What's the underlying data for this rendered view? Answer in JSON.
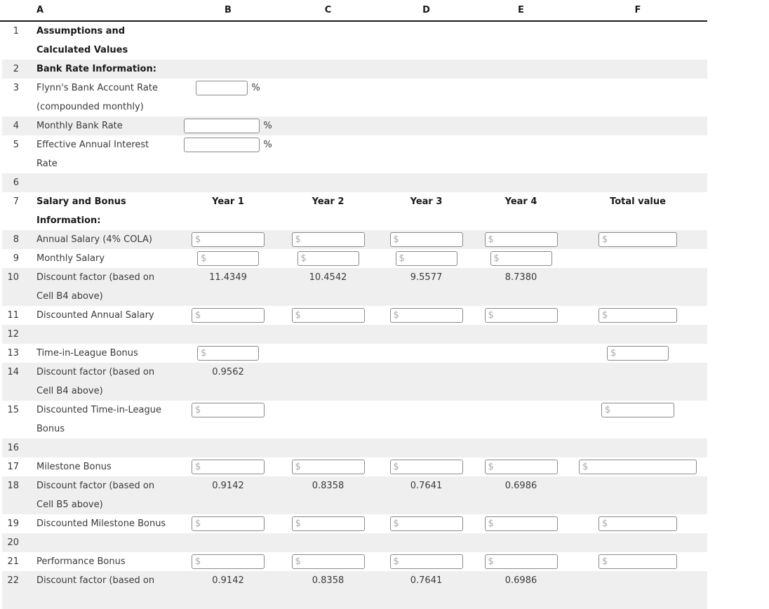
{
  "columns": [
    {
      "key": "num",
      "label": ""
    },
    {
      "key": "A",
      "label": "A"
    },
    {
      "key": "B",
      "label": "B"
    },
    {
      "key": "C",
      "label": "C"
    },
    {
      "key": "D",
      "label": "D"
    },
    {
      "key": "E",
      "label": "E"
    },
    {
      "key": "F",
      "label": "F"
    }
  ],
  "currency_placeholder": "$",
  "percent_suffix": "%",
  "colors": {
    "row_stripe": "#efefef",
    "header_border": "#1a1a1a",
    "text": "#3a3a3a",
    "bold_text": "#1a1a1a",
    "input_border": "#8a8a8a",
    "input_placeholder": "#a9a9a9"
  },
  "rows": [
    {
      "num": "1",
      "label": "Assumptions and\nCalculated Values",
      "bold": true,
      "lines": 2,
      "shaded": false,
      "cells": {}
    },
    {
      "num": "2",
      "label": "Bank Rate Information:",
      "bold": true,
      "lines": 1,
      "shaded": true,
      "cells": {}
    },
    {
      "num": "3",
      "label": "Flynn's Bank Account Rate\n(compounded monthly)",
      "bold": false,
      "lines": 2,
      "shaded": false,
      "cells": {
        "B": {
          "type": "percent_input",
          "size": "xs"
        }
      }
    },
    {
      "num": "4",
      "label": "Monthly Bank Rate",
      "bold": false,
      "lines": 1,
      "shaded": true,
      "cells": {
        "B": {
          "type": "percent_input",
          "size": "l"
        }
      }
    },
    {
      "num": "5",
      "label": "Effective Annual Interest\nRate",
      "bold": false,
      "lines": 2,
      "shaded": false,
      "cells": {
        "B": {
          "type": "percent_input",
          "size": "l"
        }
      }
    },
    {
      "num": "6",
      "label": "",
      "bold": false,
      "lines": 1,
      "shaded": true,
      "cells": {}
    },
    {
      "num": "7",
      "label": "Salary and Bonus\nInformation:",
      "bold": true,
      "lines": 2,
      "shaded": false,
      "cells": {
        "B": {
          "type": "year_header",
          "value": "Year 1"
        },
        "C": {
          "type": "year_header",
          "value": "Year 2"
        },
        "D": {
          "type": "year_header",
          "value": "Year 3"
        },
        "E": {
          "type": "year_header",
          "value": "Year 4"
        },
        "F": {
          "type": "year_header",
          "value": "Total value"
        }
      }
    },
    {
      "num": "8",
      "label": "Annual Salary (4% COLA)",
      "bold": false,
      "lines": 1,
      "shaded": true,
      "cells": {
        "B": {
          "type": "currency_input",
          "size": "m"
        },
        "C": {
          "type": "currency_input",
          "size": "m"
        },
        "D": {
          "type": "currency_input",
          "size": "m"
        },
        "E": {
          "type": "currency_input",
          "size": "m"
        },
        "F": {
          "type": "currency_input",
          "size": "xl"
        }
      }
    },
    {
      "num": "9",
      "label": "Monthly Salary",
      "bold": false,
      "lines": 1,
      "shaded": false,
      "cells": {
        "B": {
          "type": "currency_input",
          "size": "s"
        },
        "C": {
          "type": "currency_input",
          "size": "s"
        },
        "D": {
          "type": "currency_input",
          "size": "s"
        },
        "E": {
          "type": "currency_input",
          "size": "s"
        }
      }
    },
    {
      "num": "10",
      "label": "Discount factor (based on\nCell B4 above)",
      "bold": false,
      "lines": 2,
      "shaded": true,
      "cells": {
        "B": {
          "type": "text",
          "value": "11.4349"
        },
        "C": {
          "type": "text",
          "value": "10.4542"
        },
        "D": {
          "type": "text",
          "value": "9.5577"
        },
        "E": {
          "type": "text",
          "value": "8.7380"
        }
      }
    },
    {
      "num": "11",
      "label": "Discounted Annual Salary",
      "bold": false,
      "lines": 1,
      "shaded": false,
      "cells": {
        "B": {
          "type": "currency_input",
          "size": "m"
        },
        "C": {
          "type": "currency_input",
          "size": "m"
        },
        "D": {
          "type": "currency_input",
          "size": "m"
        },
        "E": {
          "type": "currency_input",
          "size": "m"
        },
        "F": {
          "type": "currency_input",
          "size": "xl"
        }
      }
    },
    {
      "num": "12",
      "label": "",
      "bold": false,
      "lines": 1,
      "shaded": true,
      "cells": {}
    },
    {
      "num": "13",
      "label": "Time-in-League Bonus",
      "bold": false,
      "lines": 1,
      "shaded": false,
      "cells": {
        "B": {
          "type": "currency_input",
          "size": "s"
        },
        "F": {
          "type": "currency_input",
          "size": "s"
        }
      }
    },
    {
      "num": "14",
      "label": "Discount factor (based on\nCell B4 above)",
      "bold": false,
      "lines": 2,
      "shaded": true,
      "cells": {
        "B": {
          "type": "text",
          "value": "0.9562"
        }
      }
    },
    {
      "num": "15",
      "label": "Discounted Time-in-League\nBonus",
      "bold": false,
      "lines": 2,
      "shaded": false,
      "cells": {
        "B": {
          "type": "currency_input",
          "size": "m"
        },
        "F": {
          "type": "currency_input",
          "size": "m"
        }
      }
    },
    {
      "num": "16",
      "label": "",
      "bold": false,
      "lines": 1,
      "shaded": true,
      "cells": {}
    },
    {
      "num": "17",
      "label": "Milestone Bonus",
      "bold": false,
      "lines": 1,
      "shaded": false,
      "cells": {
        "B": {
          "type": "currency_input",
          "size": "m"
        },
        "C": {
          "type": "currency_input",
          "size": "m"
        },
        "D": {
          "type": "currency_input",
          "size": "m"
        },
        "E": {
          "type": "currency_input",
          "size": "m"
        },
        "F": {
          "type": "currency_input",
          "size": "xxl"
        }
      }
    },
    {
      "num": "18",
      "label": "Discount factor (based on\nCell B5 above)",
      "bold": false,
      "lines": 2,
      "shaded": true,
      "cells": {
        "B": {
          "type": "text",
          "value": "0.9142"
        },
        "C": {
          "type": "text",
          "value": "0.8358"
        },
        "D": {
          "type": "text",
          "value": "0.7641"
        },
        "E": {
          "type": "text",
          "value": "0.6986"
        }
      }
    },
    {
      "num": "19",
      "label": "Discounted Milestone Bonus",
      "bold": false,
      "lines": 1,
      "shaded": false,
      "cells": {
        "B": {
          "type": "currency_input",
          "size": "m"
        },
        "C": {
          "type": "currency_input",
          "size": "m"
        },
        "D": {
          "type": "currency_input",
          "size": "m"
        },
        "E": {
          "type": "currency_input",
          "size": "m"
        },
        "F": {
          "type": "currency_input",
          "size": "xl"
        }
      }
    },
    {
      "num": "20",
      "label": "",
      "bold": false,
      "lines": 1,
      "shaded": true,
      "cells": {}
    },
    {
      "num": "21",
      "label": "Performance Bonus",
      "bold": false,
      "lines": 1,
      "shaded": false,
      "cells": {
        "B": {
          "type": "currency_input",
          "size": "m"
        },
        "C": {
          "type": "currency_input",
          "size": "m"
        },
        "D": {
          "type": "currency_input",
          "size": "m"
        },
        "E": {
          "type": "currency_input",
          "size": "m"
        },
        "F": {
          "type": "currency_input",
          "size": "xl"
        }
      }
    },
    {
      "num": "22",
      "label": "Discount factor (based on",
      "bold": false,
      "lines": 2,
      "shaded": true,
      "cells": {
        "B": {
          "type": "text",
          "value": "0.9142"
        },
        "C": {
          "type": "text",
          "value": "0.8358"
        },
        "D": {
          "type": "text",
          "value": "0.7641"
        },
        "E": {
          "type": "text",
          "value": "0.6986"
        }
      }
    }
  ]
}
